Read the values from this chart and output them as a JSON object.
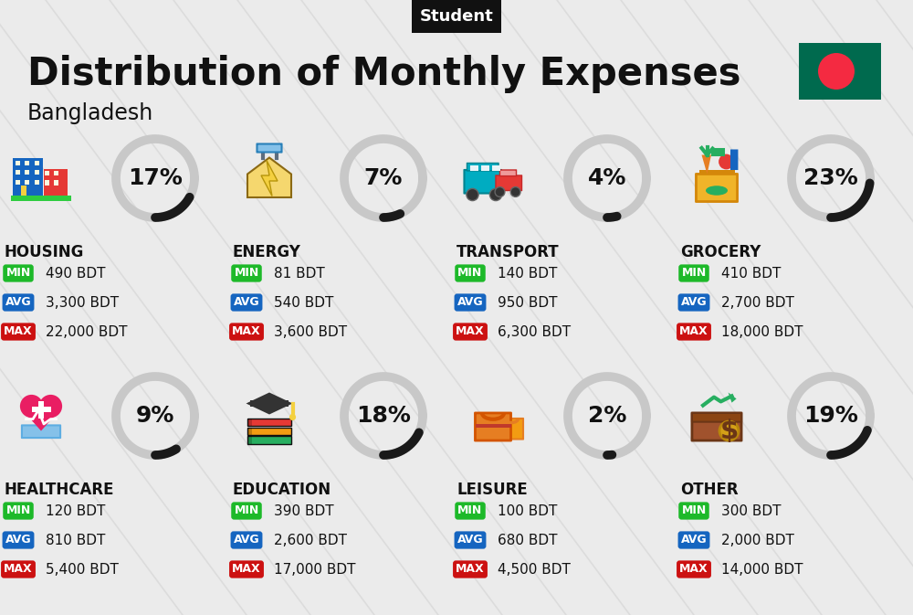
{
  "title": "Distribution of Monthly Expenses",
  "subtitle": "Bangladesh",
  "header_label": "Student",
  "bg_color": "#ebebeb",
  "categories": [
    {
      "name": "HOUSING",
      "pct": 17,
      "min_val": "490 BDT",
      "avg_val": "3,300 BDT",
      "max_val": "22,000 BDT",
      "col": 0,
      "row": 0
    },
    {
      "name": "ENERGY",
      "pct": 7,
      "min_val": "81 BDT",
      "avg_val": "540 BDT",
      "max_val": "3,600 BDT",
      "col": 1,
      "row": 0
    },
    {
      "name": "TRANSPORT",
      "pct": 4,
      "min_val": "140 BDT",
      "avg_val": "950 BDT",
      "max_val": "6,300 BDT",
      "col": 2,
      "row": 0
    },
    {
      "name": "GROCERY",
      "pct": 23,
      "min_val": "410 BDT",
      "avg_val": "2,700 BDT",
      "max_val": "18,000 BDT",
      "col": 3,
      "row": 0
    },
    {
      "name": "HEALTHCARE",
      "pct": 9,
      "min_val": "120 BDT",
      "avg_val": "810 BDT",
      "max_val": "5,400 BDT",
      "col": 0,
      "row": 1
    },
    {
      "name": "EDUCATION",
      "pct": 18,
      "min_val": "390 BDT",
      "avg_val": "2,600 BDT",
      "max_val": "17,000 BDT",
      "col": 1,
      "row": 1
    },
    {
      "name": "LEISURE",
      "pct": 2,
      "min_val": "100 BDT",
      "avg_val": "680 BDT",
      "max_val": "4,500 BDT",
      "col": 2,
      "row": 1
    },
    {
      "name": "OTHER",
      "pct": 19,
      "min_val": "300 BDT",
      "avg_val": "2,000 BDT",
      "max_val": "14,000 BDT",
      "col": 3,
      "row": 1
    }
  ],
  "min_color": "#1db929",
  "avg_color": "#1565c0",
  "max_color": "#cc1111",
  "arc_color_filled": "#1a1a1a",
  "arc_color_empty": "#c8c8c8",
  "label_color": "#111111",
  "header_bg": "#111111",
  "header_text_color": "#ffffff",
  "title_fontsize": 30,
  "subtitle_fontsize": 17,
  "cat_fontsize": 12,
  "val_fontsize": 11,
  "pct_fontsize": 18,
  "diag_color": "#d6d6d6",
  "flag_green": "#006a4e",
  "flag_red": "#f42a41"
}
